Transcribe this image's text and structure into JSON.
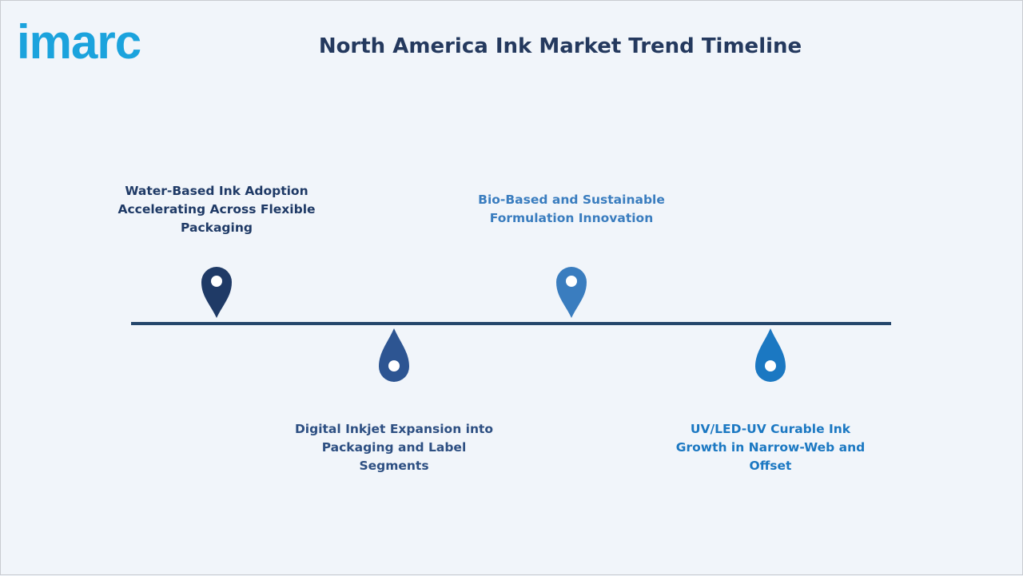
{
  "header": {
    "logo": "imarc",
    "title": "North America Ink Market Trend Timeline"
  },
  "milestones": [
    {
      "label": "Water-Based Ink Adoption Accelerating Across Flexible Packaging"
    },
    {
      "label": "Digital Inkjet Expansion into Packaging and Label Segments"
    },
    {
      "label": "Bio-Based and Sustainable Formulation Innovation"
    },
    {
      "label": "UV/LED-UV Curable Ink Growth in Narrow-Web and Offset"
    }
  ]
}
